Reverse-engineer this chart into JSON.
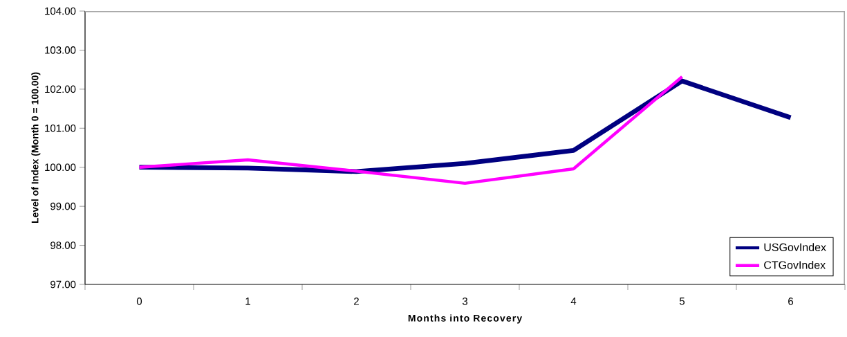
{
  "chart_data": {
    "type": "line",
    "xlabel": "Months into Recovery",
    "ylabel": "Level of Index (Month 0 = 100.00)",
    "categories": [
      "0",
      "1",
      "2",
      "3",
      "4",
      "5",
      "6"
    ],
    "series": [
      {
        "name": "USGovIndex",
        "color": "#000080",
        "values": [
          100.0,
          99.98,
          99.89,
          100.1,
          100.43,
          102.21,
          101.27
        ]
      },
      {
        "name": "CTGovIndex",
        "color": "#ff00ff",
        "values": [
          100.0,
          100.19,
          99.9,
          99.59,
          99.96,
          102.32,
          null
        ]
      }
    ],
    "ylim": [
      97,
      104
    ],
    "yticks": [
      {
        "value": 97,
        "label": "97.00"
      },
      {
        "value": 98,
        "label": "98.00"
      },
      {
        "value": 99,
        "label": "99.00"
      },
      {
        "value": 100,
        "label": "100.00"
      },
      {
        "value": 101,
        "label": "101.00"
      },
      {
        "value": 102,
        "label": "102.00"
      },
      {
        "value": 103,
        "label": "103.00"
      },
      {
        "value": 104,
        "label": "104.00"
      }
    ],
    "legend": "bottom right",
    "grid": false,
    "marker": "none",
    "line_style": "solid"
  }
}
